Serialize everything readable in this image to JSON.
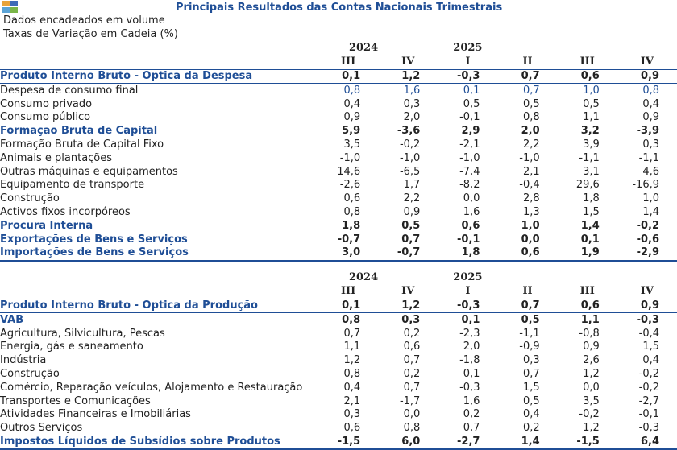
{
  "title": "Principais Resultados das Contas Nacionais Trimestrais",
  "subtitle1": "Dados encadeados em volume",
  "subtitle2": "Taxas de Variação em Cadeia (%)",
  "colors": {
    "accent": "#1f4e96",
    "logo": [
      "#e8a33a",
      "#3f6bb6",
      "#5aa3d6",
      "#7ab648"
    ]
  },
  "years": [
    "2024",
    "2025"
  ],
  "quarters": [
    "III",
    "IV",
    "I",
    "II",
    "III",
    "IV"
  ],
  "table1": [
    {
      "label": "Produto Interno Bruto - Óptica da Despesa",
      "style": "gdp",
      "indent": 0,
      "values": [
        "0,1",
        "1,2",
        "-0,3",
        "0,7",
        "0,6",
        "0,9"
      ]
    },
    {
      "label": "Despesa de consumo final",
      "style": "blue",
      "indent": 0,
      "values": [
        "0,8",
        "1,6",
        "0,1",
        "0,7",
        "1,0",
        "0,8"
      ]
    },
    {
      "label": "Consumo privado",
      "style": "plain",
      "indent": 1,
      "values": [
        "0,4",
        "0,3",
        "0,5",
        "0,5",
        "0,5",
        "0,4"
      ]
    },
    {
      "label": "Consumo público",
      "style": "plain",
      "indent": 1,
      "values": [
        "0,9",
        "2,0",
        "-0,1",
        "0,8",
        "1,1",
        "0,9"
      ]
    },
    {
      "label": "Formação Bruta de Capital",
      "style": "bold",
      "indent": 0,
      "values": [
        "5,9",
        "-3,6",
        "2,9",
        "2,0",
        "3,2",
        "-3,9"
      ]
    },
    {
      "label": "Formação Bruta de Capital Fixo",
      "style": "plain",
      "indent": 1,
      "values": [
        "3,5",
        "-0,2",
        "-2,1",
        "2,2",
        "3,9",
        "0,3"
      ]
    },
    {
      "label": "Animais e plantações",
      "style": "plain",
      "indent": 2,
      "values": [
        "-1,0",
        "-1,0",
        "-1,0",
        "-1,0",
        "-1,1",
        "-1,1"
      ]
    },
    {
      "label": "Outras máquinas e equipamentos",
      "style": "plain",
      "indent": 2,
      "values": [
        "14,6",
        "-6,5",
        "-7,4",
        "2,1",
        "3,1",
        "4,6"
      ]
    },
    {
      "label": "Equipamento de transporte",
      "style": "plain",
      "indent": 2,
      "values": [
        "-2,6",
        "1,7",
        "-8,2",
        "-0,4",
        "29,6",
        "-16,9"
      ]
    },
    {
      "label": "Construção",
      "style": "plain",
      "indent": 2,
      "values": [
        "0,6",
        "2,2",
        "0,0",
        "2,8",
        "1,8",
        "1,0"
      ]
    },
    {
      "label": "Activos fixos incorpóreos",
      "style": "plain",
      "indent": 2,
      "values": [
        "0,8",
        "0,9",
        "1,6",
        "1,3",
        "1,5",
        "1,4"
      ]
    },
    {
      "label": "Procura Interna",
      "style": "bold",
      "indent": 0,
      "values": [
        "1,8",
        "0,5",
        "0,6",
        "1,0",
        "1,4",
        "-0,2"
      ]
    },
    {
      "label": "Exportações de Bens e Serviços",
      "style": "bold",
      "indent": 0,
      "values": [
        "-0,7",
        "0,7",
        "-0,1",
        "0,0",
        "0,1",
        "-0,6"
      ]
    },
    {
      "label": "Importações de Bens e Serviços",
      "style": "bold last",
      "indent": 0,
      "values": [
        "3,0",
        "-0,7",
        "1,8",
        "0,6",
        "1,9",
        "-2,9"
      ]
    }
  ],
  "table2": [
    {
      "label": "Produto Interno Bruto - Óptica da Produção",
      "style": "gdp",
      "indent": 0,
      "values": [
        "0,1",
        "1,2",
        "-0,3",
        "0,7",
        "0,6",
        "0,9"
      ]
    },
    {
      "label": "VAB",
      "style": "bold",
      "indent": 0,
      "values": [
        "0,8",
        "0,3",
        "0,1",
        "0,5",
        "1,1",
        "-0,3"
      ]
    },
    {
      "label": "Agricultura, Silvicultura, Pescas",
      "style": "plain",
      "indent": 1,
      "values": [
        "0,7",
        "0,2",
        "-2,3",
        "-1,1",
        "-0,8",
        "-0,4"
      ]
    },
    {
      "label": "Energia, gás e saneamento",
      "style": "plain",
      "indent": 1,
      "values": [
        "1,1",
        "0,6",
        "2,0",
        "-0,9",
        "0,9",
        "1,5"
      ]
    },
    {
      "label": "Indústria",
      "style": "plain",
      "indent": 1,
      "values": [
        "1,2",
        "0,7",
        "-1,8",
        "0,3",
        "2,6",
        "0,4"
      ]
    },
    {
      "label": "Construção",
      "style": "plain",
      "indent": 1,
      "values": [
        "0,8",
        "0,2",
        "0,1",
        "0,7",
        "1,2",
        "-0,2"
      ]
    },
    {
      "label": "Comércio, Reparação veículos, Alojamento e Restauração",
      "style": "plain",
      "indent": 1,
      "values": [
        "0,4",
        "0,7",
        "-0,3",
        "1,5",
        "0,0",
        "-0,2"
      ]
    },
    {
      "label": "Transportes e Comunicações",
      "style": "plain",
      "indent": 1,
      "values": [
        "2,1",
        "-1,7",
        "1,6",
        "0,5",
        "3,5",
        "-2,7"
      ]
    },
    {
      "label": "Atividades Financeiras e Imobiliárias",
      "style": "plain",
      "indent": 1,
      "values": [
        "0,3",
        "0,0",
        "0,2",
        "0,4",
        "-0,2",
        "-0,1"
      ]
    },
    {
      "label": "Outros Serviços",
      "style": "plain",
      "indent": 1,
      "values": [
        "0,6",
        "0,8",
        "0,7",
        "0,2",
        "1,2",
        "-0,3"
      ]
    },
    {
      "label": "Impostos Líquidos de Subsídios sobre Produtos",
      "style": "bold last",
      "indent": 0,
      "values": [
        "-1,5",
        "6,0",
        "-2,7",
        "1,4",
        "-1,5",
        "6,4"
      ]
    }
  ]
}
